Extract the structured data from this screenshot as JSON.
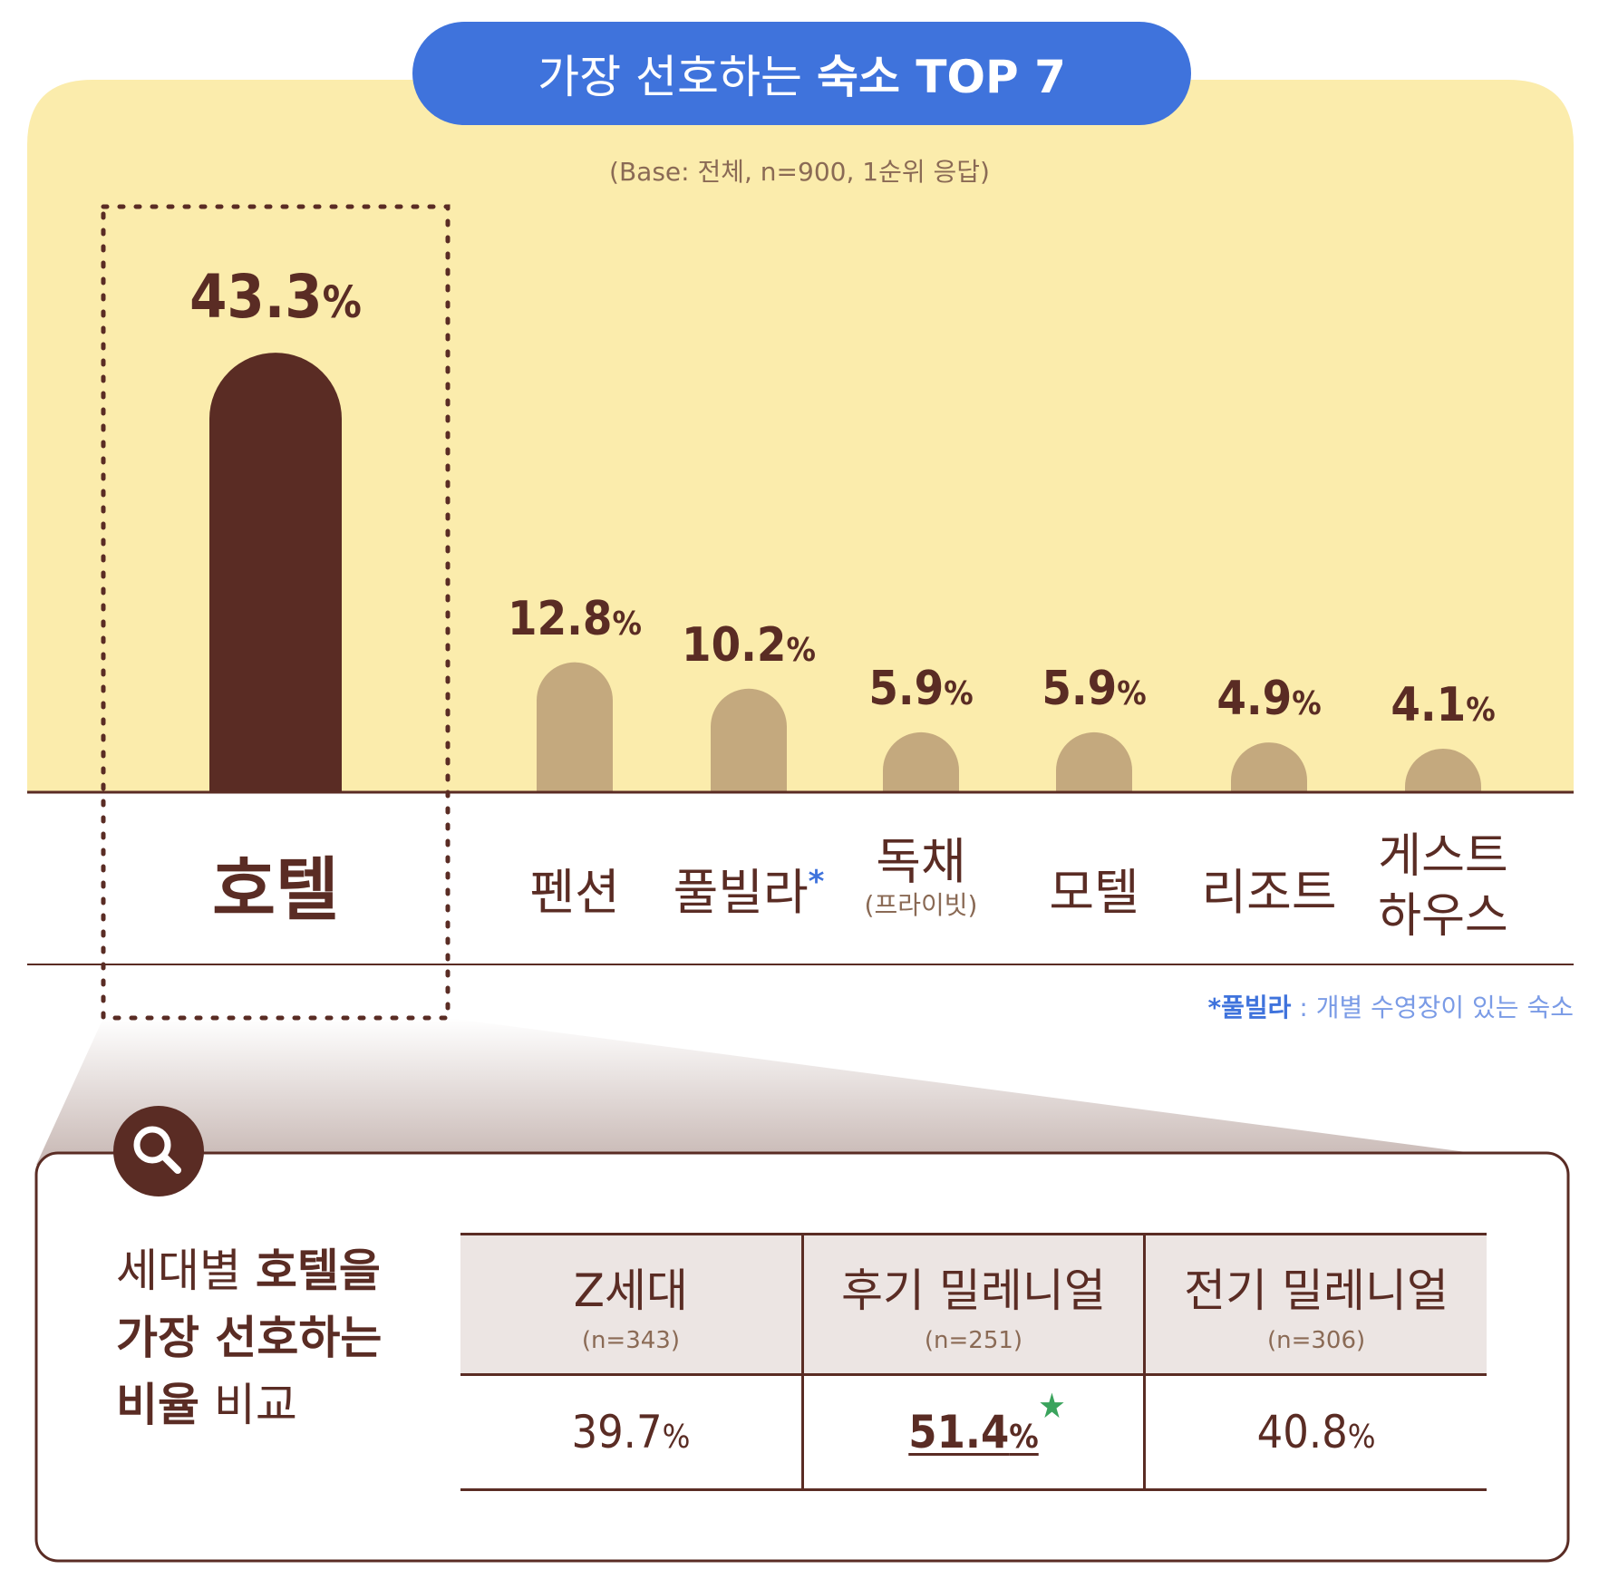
{
  "title": {
    "normal": "가장 선호하는",
    "bold": "숙소 TOP 7"
  },
  "subtitle": "(Base: 전체, n=900, 1순위 응답)",
  "colors": {
    "highlight_bar": "#5a2c24",
    "bar": "#c4a97e",
    "background": "#fbecac",
    "title_pill": "#3f73dc",
    "star": "#3aa35c"
  },
  "chart_data": {
    "type": "bar",
    "categories": [
      "호텔",
      "펜션",
      "풀빌라",
      "독채",
      "모텔",
      "리조트",
      "게스트하우스"
    ],
    "values": [
      43.3,
      12.8,
      10.2,
      5.9,
      5.9,
      4.9,
      4.1
    ],
    "value_labels": [
      "43.3",
      "12.8",
      "10.2",
      "5.9",
      "5.9",
      "4.9",
      "4.1"
    ],
    "percent_sign": "%",
    "highlight_index": 0
  },
  "category_notes": {
    "asterisk": "*",
    "private": "(프라이빗)",
    "guesthouse_line1": "게스트",
    "guesthouse_line2": "하우스"
  },
  "footnote": {
    "term": "*풀빌라",
    "text": " : 개별 수영장이 있는 숙소"
  },
  "detail": {
    "title_lines": [
      {
        "normal": "세대별 ",
        "bold": "호텔을"
      },
      {
        "normal": "",
        "bold": "가장 선호하는"
      },
      {
        "normal": " 비교",
        "bold": "비율"
      }
    ],
    "icon": "search-icon",
    "table": {
      "headers": [
        {
          "name": "Z세대",
          "n": "(n=343)"
        },
        {
          "name": "후기 밀레니얼",
          "n": "(n=251)"
        },
        {
          "name": "전기 밀레니얼",
          "n": "(n=306)"
        }
      ],
      "values": [
        "39.7",
        "51.4",
        "40.8"
      ],
      "highlight_index": 1,
      "highlight_mark": "★"
    }
  }
}
